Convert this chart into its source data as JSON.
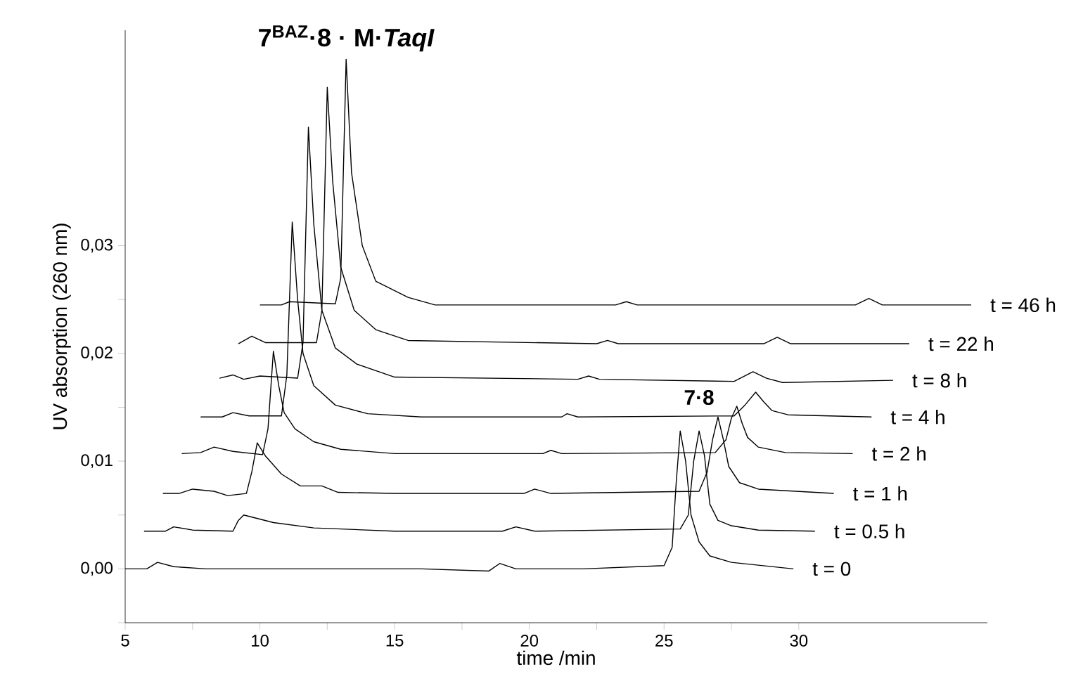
{
  "chart_data": {
    "type": "line",
    "xlabel": "time /min",
    "ylabel": "UV absorption (260 nm)",
    "xlim": [
      5,
      37
    ],
    "ylim": [
      -0.005,
      0.05
    ],
    "xticks": [
      5,
      {
        "value": 7.5,
        "label": null
      },
      10,
      {
        "value": 12.5,
        "label": null
      },
      15,
      {
        "value": 17.5,
        "label": null
      },
      20,
      {
        "value": 22.5,
        "label": null
      },
      25,
      {
        "value": 27.5,
        "label": null
      },
      30
    ],
    "yticks": [
      {
        "value": -0.005,
        "label": null
      },
      {
        "value": 0,
        "label": "0,00"
      },
      {
        "value": 0.005,
        "label": null
      },
      {
        "value": 0.01,
        "label": "0,01"
      },
      {
        "value": 0.015,
        "label": null
      },
      {
        "value": 0.02,
        "label": "0,02"
      },
      {
        "value": 0.025,
        "label": null
      },
      {
        "value": 0.03,
        "label": "0,03"
      }
    ],
    "grid": false,
    "legend": false,
    "marker": "none",
    "line_style": "solid",
    "annotations": [
      {
        "text": "7$^{BAZ}$·8 · M·*TaqI*",
        "x": 13.2,
        "y": 0.0473
      },
      {
        "text": "7·8",
        "x": 26.3,
        "y": 0.0145
      }
    ],
    "series": [
      {
        "name": "t = 0",
        "color": "#000000",
        "x": [
          5.0,
          5.8,
          6.2,
          6.8,
          8,
          12,
          16,
          18.5,
          18.9,
          19.5,
          22,
          25.0,
          25.3,
          25.45,
          25.6,
          25.8,
          26.0,
          26.3,
          26.7,
          27.5,
          29.8
        ],
        "values": [
          0,
          0,
          0.0006,
          0.0002,
          0,
          0,
          0,
          -0.0002,
          0.0005,
          0,
          0,
          0.0003,
          0.002,
          0.008,
          0.0128,
          0.01,
          0.005,
          0.0025,
          0.0012,
          0.0006,
          0
        ]
      },
      {
        "name": "t = 0.5 h",
        "color": "#000000",
        "x": [
          5.7,
          6.5,
          6.8,
          7.5,
          9.0,
          9.2,
          9.4,
          10.5,
          12,
          15,
          19.0,
          19.5,
          20.2,
          25.6,
          25.9,
          26.1,
          26.3,
          26.5,
          26.7,
          27.0,
          27.5,
          28.5,
          30.6
        ],
        "values": [
          0.0035,
          0.0035,
          0.0039,
          0.0036,
          0.0035,
          0.0045,
          0.005,
          0.0043,
          0.0038,
          0.0035,
          0.0035,
          0.0039,
          0.0035,
          0.0037,
          0.005,
          0.01,
          0.0128,
          0.0105,
          0.006,
          0.0045,
          0.004,
          0.0036,
          0.0035
        ]
      },
      {
        "name": "t = 1 h",
        "color": "#000000",
        "x": [
          6.4,
          7.0,
          7.5,
          8.3,
          8.8,
          9.5,
          9.7,
          9.9,
          10.2,
          10.8,
          11.5,
          12.3,
          12.9,
          15,
          19.8,
          20.2,
          20.8,
          26.3,
          26.6,
          26.8,
          27.0,
          27.2,
          27.4,
          27.8,
          28.5,
          31.3
        ],
        "values": [
          0.007,
          0.007,
          0.0074,
          0.0072,
          0.0068,
          0.007,
          0.009,
          0.0117,
          0.0105,
          0.0088,
          0.0077,
          0.0077,
          0.0071,
          0.007,
          0.007,
          0.0074,
          0.007,
          0.0072,
          0.009,
          0.012,
          0.0141,
          0.012,
          0.0095,
          0.008,
          0.0074,
          0.007
        ]
      },
      {
        "name": "t = 2 h",
        "color": "#000000",
        "x": [
          7.1,
          7.8,
          8.3,
          9.0,
          10.1,
          10.3,
          10.5,
          10.7,
          10.9,
          11.3,
          12,
          13,
          15,
          20.5,
          20.8,
          21.2,
          26.9,
          27.3,
          27.5,
          27.7,
          27.9,
          28.1,
          28.5,
          29.5,
          32.0
        ],
        "values": [
          0.0107,
          0.0108,
          0.0113,
          0.0109,
          0.0106,
          0.013,
          0.0202,
          0.017,
          0.0145,
          0.013,
          0.0118,
          0.0111,
          0.0107,
          0.0107,
          0.011,
          0.0107,
          0.0108,
          0.012,
          0.014,
          0.0151,
          0.0135,
          0.0122,
          0.0113,
          0.0108,
          0.0107
        ]
      },
      {
        "name": "t = 4 h",
        "color": "#000000",
        "x": [
          7.8,
          8.6,
          9.0,
          9.6,
          10.8,
          11.0,
          11.2,
          11.4,
          11.6,
          12.0,
          12.8,
          14,
          16,
          21.2,
          21.4,
          21.8,
          27.6,
          28.0,
          28.4,
          28.7,
          29.0,
          29.6,
          32.7
        ],
        "values": [
          0.0141,
          0.0141,
          0.0145,
          0.0142,
          0.0142,
          0.018,
          0.0322,
          0.025,
          0.02,
          0.017,
          0.0152,
          0.0144,
          0.0141,
          0.0141,
          0.0144,
          0.0141,
          0.0142,
          0.0152,
          0.0164,
          0.0155,
          0.0147,
          0.0143,
          0.0141
        ]
      },
      {
        "name": "t = 8 h",
        "color": "#000000",
        "x": [
          8.5,
          9.0,
          9.4,
          10,
          11.4,
          11.6,
          11.8,
          12.0,
          12.3,
          12.8,
          13.6,
          15,
          21.8,
          22.2,
          22.6,
          27.6,
          28.3,
          28.8,
          29.4,
          33.5
        ],
        "values": [
          0.0177,
          0.018,
          0.0176,
          0.0179,
          0.0177,
          0.021,
          0.041,
          0.032,
          0.024,
          0.0205,
          0.019,
          0.0178,
          0.0176,
          0.0179,
          0.0176,
          0.0174,
          0.0183,
          0.0177,
          0.0173,
          0.0175
        ]
      },
      {
        "name": "t = 22 h",
        "color": "#000000",
        "x": [
          9.2,
          9.7,
          10.2,
          11.4,
          12.1,
          12.3,
          12.5,
          12.7,
          13.0,
          13.5,
          14.3,
          15.5,
          22.5,
          22.9,
          23.3,
          28.7,
          29.2,
          29.7,
          34.1
        ],
        "values": [
          0.0209,
          0.0216,
          0.021,
          0.021,
          0.021,
          0.024,
          0.0447,
          0.036,
          0.028,
          0.024,
          0.0222,
          0.0212,
          0.0209,
          0.0212,
          0.0209,
          0.0209,
          0.0215,
          0.0209,
          0.0209
        ]
      },
      {
        "name": "t = 46 h",
        "color": "#000000",
        "x": [
          10.0,
          10.8,
          11.1,
          12.8,
          13.0,
          13.2,
          13.4,
          13.8,
          14.3,
          15.5,
          16.5,
          23.2,
          23.6,
          24,
          32.1,
          32.6,
          33.1,
          36.4
        ],
        "values": [
          0.0245,
          0.0245,
          0.0248,
          0.0246,
          0.027,
          0.0473,
          0.0368,
          0.03,
          0.0267,
          0.0252,
          0.0245,
          0.0245,
          0.0248,
          0.0245,
          0.0245,
          0.0251,
          0.0245,
          0.0245
        ]
      }
    ]
  }
}
